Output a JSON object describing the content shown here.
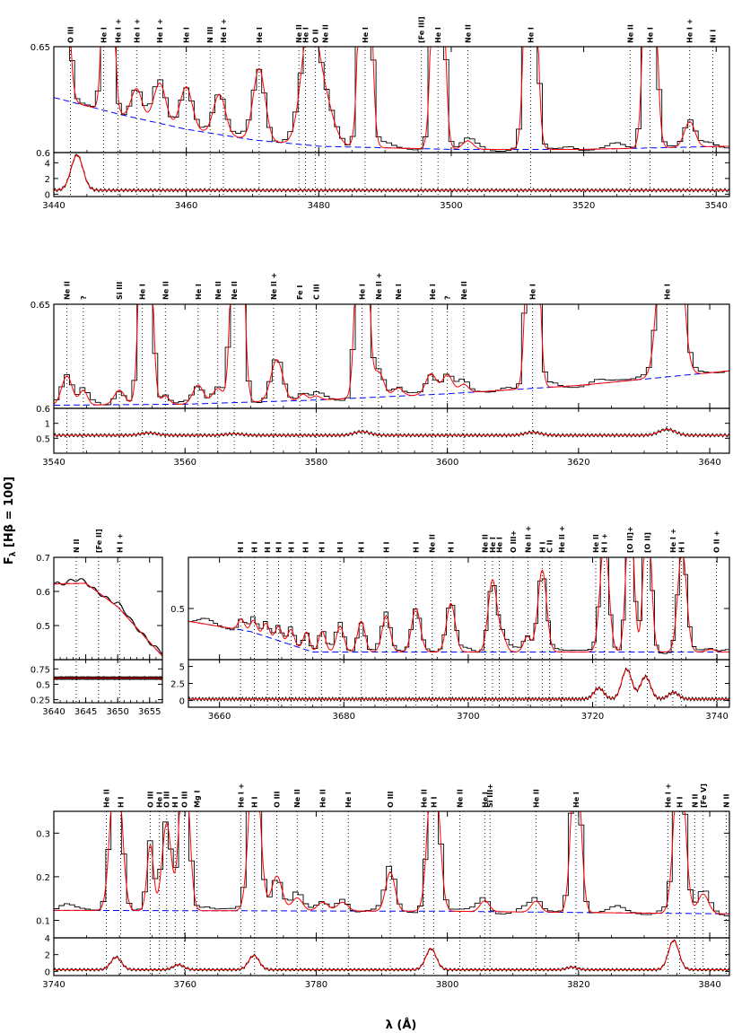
{
  "figure": {
    "xlabel": "λ (Å)",
    "ylabel": "F",
    "ylabel_sub": "λ",
    "ylabel_rest": " [Hβ = 100]"
  },
  "colors": {
    "observed": "#000000",
    "model": "#ff0000",
    "continuum": "#0000ff",
    "markers": "#000000"
  },
  "chart_data": [
    {
      "type": "line",
      "name": "panel-1",
      "xlim": [
        3440,
        3542
      ],
      "ylim": [
        0.6,
        0.65
      ],
      "x_ticks": [
        3440,
        3460,
        3480,
        3500,
        3520,
        3540
      ],
      "y_ticks": [
        {
          "v": 0.6,
          "t": "0.6"
        },
        {
          "v": 0.65,
          "t": "0.65"
        }
      ],
      "resid_ylim": [
        -0.3,
        5.3
      ],
      "resid_ticks": [
        {
          "v": 0,
          "t": "0"
        },
        {
          "v": 2,
          "t": "2"
        },
        {
          "v": 4,
          "t": "4"
        }
      ],
      "resid_base": 0.5,
      "resid_peaks": [
        {
          "x": 3443.5,
          "a": 4.5,
          "w": 0.9
        }
      ],
      "continuum": [
        [
          3440,
          0.626
        ],
        [
          3450,
          0.618
        ],
        [
          3460,
          0.611
        ],
        [
          3470,
          0.606
        ],
        [
          3480,
          0.603
        ],
        [
          3500,
          0.6015
        ],
        [
          3520,
          0.6015
        ],
        [
          3542,
          0.603
        ]
      ],
      "peaks": [
        {
          "x": 3441.0,
          "a": 0.2,
          "w": 0.8
        },
        {
          "x": 3448.2,
          "a": 0.2,
          "w": 0.6
        },
        {
          "x": 3452.5,
          "a": 0.014,
          "w": 0.8
        },
        {
          "x": 3456.0,
          "a": 0.019,
          "w": 0.9
        },
        {
          "x": 3460.0,
          "a": 0.02,
          "w": 0.9
        },
        {
          "x": 3465.0,
          "a": 0.019,
          "w": 0.9
        },
        {
          "x": 3471.0,
          "a": 0.034,
          "w": 0.9
        },
        {
          "x": 3478.5,
          "a": 0.05,
          "w": 1.2
        },
        {
          "x": 3480.5,
          "a": 0.025,
          "w": 1.5
        },
        {
          "x": 3487.0,
          "a": 0.2,
          "w": 0.7
        },
        {
          "x": 3498.0,
          "a": 0.2,
          "w": 0.7
        },
        {
          "x": 3502.5,
          "a": 0.004,
          "w": 0.8
        },
        {
          "x": 3512.0,
          "a": 0.2,
          "w": 0.7
        },
        {
          "x": 3530.0,
          "a": 0.2,
          "w": 0.7
        },
        {
          "x": 3536.0,
          "a": 0.012,
          "w": 0.8
        }
      ],
      "markers": [
        {
          "x": 3442.5,
          "l": "O III"
        },
        {
          "x": 3447.5,
          "l": "He I"
        },
        {
          "x": 3449.7,
          "l": "He I +"
        },
        {
          "x": 3452.5,
          "l": "He I +"
        },
        {
          "x": 3456.0,
          "l": "He I +"
        },
        {
          "x": 3460.0,
          "l": "He I"
        },
        {
          "x": 3463.6,
          "l": "N III"
        },
        {
          "x": 3465.6,
          "l": "He I +"
        },
        {
          "x": 3471.0,
          "l": "He I"
        },
        {
          "x": 3477.0,
          "l": "Ne II"
        },
        {
          "x": 3478.0,
          "l": "He I"
        },
        {
          "x": 3479.5,
          "l": "O II"
        },
        {
          "x": 3481.0,
          "l": "Ne II"
        },
        {
          "x": 3487.0,
          "l": "He I"
        },
        {
          "x": 3495.5,
          "l": "[Fe III]"
        },
        {
          "x": 3498.0,
          "l": "He I"
        },
        {
          "x": 3502.5,
          "l": "Ne II"
        },
        {
          "x": 3512.0,
          "l": "He I"
        },
        {
          "x": 3527.0,
          "l": "Ne II"
        },
        {
          "x": 3530.0,
          "l": "He I"
        },
        {
          "x": 3536.0,
          "l": "He I +"
        },
        {
          "x": 3539.5,
          "l": "Ni I"
        }
      ]
    },
    {
      "type": "line",
      "name": "panel-2",
      "xlim": [
        3540,
        3643
      ],
      "ylim": [
        0.6,
        0.65
      ],
      "x_ticks": [
        3540,
        3560,
        3580,
        3600,
        3620,
        3640
      ],
      "y_ticks": [
        {
          "v": 0.6,
          "t": "0.6"
        },
        {
          "v": 0.65,
          "t": "0.65"
        }
      ],
      "resid_ylim": [
        0.0,
        1.5
      ],
      "resid_ticks": [
        {
          "v": 0.5,
          "t": "0.5"
        },
        {
          "v": 1.0,
          "t": "1"
        }
      ],
      "resid_base": 0.6,
      "resid_peaks": [
        {
          "x": 3554.5,
          "a": 0.08,
          "w": 1.2
        },
        {
          "x": 3567.5,
          "a": 0.05,
          "w": 1.2
        },
        {
          "x": 3587.0,
          "a": 0.12,
          "w": 1.2
        },
        {
          "x": 3613.0,
          "a": 0.1,
          "w": 1.2
        },
        {
          "x": 3633.5,
          "a": 0.2,
          "w": 1.2
        }
      ],
      "continuum": [
        [
          3540,
          0.6015
        ],
        [
          3560,
          0.602
        ],
        [
          3580,
          0.604
        ],
        [
          3600,
          0.607
        ],
        [
          3620,
          0.611
        ],
        [
          3643,
          0.618
        ]
      ],
      "peaks": [
        {
          "x": 3542.0,
          "a": 0.014,
          "w": 0.8
        },
        {
          "x": 3544.5,
          "a": 0.007,
          "w": 0.6
        },
        {
          "x": 3550.0,
          "a": 0.007,
          "w": 0.8
        },
        {
          "x": 3554.0,
          "a": 0.2,
          "w": 0.7
        },
        {
          "x": 3557.0,
          "a": 0.004,
          "w": 0.6
        },
        {
          "x": 3562.0,
          "a": 0.009,
          "w": 0.8
        },
        {
          "x": 3565.0,
          "a": 0.007,
          "w": 0.8
        },
        {
          "x": 3568.0,
          "a": 0.2,
          "w": 0.7
        },
        {
          "x": 3574.0,
          "a": 0.02,
          "w": 0.9
        },
        {
          "x": 3578.0,
          "a": 0.003,
          "w": 0.6
        },
        {
          "x": 3580.0,
          "a": 0.002,
          "w": 0.6
        },
        {
          "x": 3587.0,
          "a": 0.2,
          "w": 0.7
        },
        {
          "x": 3589.5,
          "a": 0.012,
          "w": 0.8
        },
        {
          "x": 3592.5,
          "a": 0.004,
          "w": 0.7
        },
        {
          "x": 3597.5,
          "a": 0.01,
          "w": 0.8
        },
        {
          "x": 3600.0,
          "a": 0.009,
          "w": 0.8
        },
        {
          "x": 3602.5,
          "a": 0.004,
          "w": 0.7
        },
        {
          "x": 3613.0,
          "a": 0.2,
          "w": 0.7
        },
        {
          "x": 3634.0,
          "a": 0.2,
          "w": 1.2
        }
      ],
      "markers": [
        {
          "x": 3542.0,
          "l": "Ne II"
        },
        {
          "x": 3544.5,
          "l": "?"
        },
        {
          "x": 3550.0,
          "l": "Si III"
        },
        {
          "x": 3553.5,
          "l": "He I"
        },
        {
          "x": 3557.0,
          "l": "Ne II"
        },
        {
          "x": 3562.0,
          "l": "He I"
        },
        {
          "x": 3565.0,
          "l": "Ne II"
        },
        {
          "x": 3567.5,
          "l": "Ne II"
        },
        {
          "x": 3573.5,
          "l": "Ne II +"
        },
        {
          "x": 3577.5,
          "l": "Fe I"
        },
        {
          "x": 3580.0,
          "l": "C III"
        },
        {
          "x": 3587.0,
          "l": "He I"
        },
        {
          "x": 3589.5,
          "l": "Ne II +"
        },
        {
          "x": 3592.5,
          "l": "Ne I"
        },
        {
          "x": 3597.7,
          "l": "He I"
        },
        {
          "x": 3600.0,
          "l": "?"
        },
        {
          "x": 3602.5,
          "l": "Ne II"
        },
        {
          "x": 3613.0,
          "l": "He I"
        },
        {
          "x": 3633.5,
          "l": "He I"
        }
      ]
    },
    {
      "type": "line",
      "name": "panel-3a",
      "xlim": [
        3640,
        3657
      ],
      "ylim": [
        0.4,
        0.7
      ],
      "x_ticks": [
        3640,
        3645,
        3650,
        3655
      ],
      "y_ticks": [
        {
          "v": 0.5,
          "t": "0.5"
        },
        {
          "v": 0.6,
          "t": "0.6"
        },
        {
          "v": 0.7,
          "t": "0.7"
        }
      ],
      "resid_ylim": [
        0.2,
        0.9
      ],
      "resid_ticks": [
        {
          "v": 0.25,
          "t": "0.25"
        },
        {
          "v": 0.5,
          "t": "0.5"
        },
        {
          "v": 0.75,
          "t": "0.75"
        }
      ],
      "resid_base": 0.6,
      "resid_peaks": [],
      "continuum": [
        [
          3640,
          0.622
        ],
        [
          3645,
          0.624
        ],
        [
          3650,
          0.555
        ],
        [
          3657,
          0.41
        ]
      ],
      "peaks": [],
      "markers": [
        {
          "x": 3643.5,
          "l": "N II"
        },
        {
          "x": 3647.0,
          "l": "[Fe II]"
        },
        {
          "x": 3650.3,
          "l": "H I +"
        }
      ]
    },
    {
      "type": "line",
      "name": "panel-3b",
      "xlim": [
        3655,
        3742
      ],
      "ylim": [
        0.4,
        0.6
      ],
      "x_ticks": [
        3660,
        3680,
        3700,
        3720,
        3740
      ],
      "y_ticks": [
        {
          "v": 0.5,
          "t": "0.5"
        }
      ],
      "resid_ylim": [
        -1.0,
        6.0
      ],
      "resid_ticks": [
        {
          "v": 0,
          "t": "0"
        },
        {
          "v": 2.5,
          "t": "2.5"
        },
        {
          "v": 5,
          "t": "5"
        }
      ],
      "resid_base": 0.2,
      "resid_peaks": [
        {
          "x": 3721.0,
          "a": 1.6,
          "w": 0.8
        },
        {
          "x": 3725.5,
          "a": 4.4,
          "w": 0.8
        },
        {
          "x": 3728.5,
          "a": 3.3,
          "w": 0.8
        },
        {
          "x": 3733.0,
          "a": 1.0,
          "w": 0.8
        }
      ],
      "continuum": [
        [
          3655,
          0.475
        ],
        [
          3665,
          0.455
        ],
        [
          3675,
          0.415
        ],
        [
          3700,
          0.415
        ],
        [
          3742,
          0.415
        ]
      ],
      "peaks": [
        {
          "x": 3663.5,
          "a": 0.022,
          "w": 0.5
        },
        {
          "x": 3665.5,
          "a": 0.024,
          "w": 0.5
        },
        {
          "x": 3667.5,
          "a": 0.026,
          "w": 0.5
        },
        {
          "x": 3669.5,
          "a": 0.028,
          "w": 0.5
        },
        {
          "x": 3671.5,
          "a": 0.03,
          "w": 0.5
        },
        {
          "x": 3674.0,
          "a": 0.035,
          "w": 0.5
        },
        {
          "x": 3676.5,
          "a": 0.04,
          "w": 0.55
        },
        {
          "x": 3679.4,
          "a": 0.05,
          "w": 0.6
        },
        {
          "x": 3682.8,
          "a": 0.06,
          "w": 0.6
        },
        {
          "x": 3686.8,
          "a": 0.07,
          "w": 0.65
        },
        {
          "x": 3691.6,
          "a": 0.085,
          "w": 0.7
        },
        {
          "x": 3697.2,
          "a": 0.095,
          "w": 0.7
        },
        {
          "x": 3703.9,
          "a": 0.14,
          "w": 0.7
        },
        {
          "x": 3705.5,
          "a": 0.03,
          "w": 0.6
        },
        {
          "x": 3709.5,
          "a": 0.03,
          "w": 0.6
        },
        {
          "x": 3711.9,
          "a": 0.16,
          "w": 0.7
        },
        {
          "x": 3721.9,
          "a": 0.22,
          "w": 0.7
        },
        {
          "x": 3726.0,
          "a": 0.3,
          "w": 0.6
        },
        {
          "x": 3728.8,
          "a": 0.3,
          "w": 0.6
        },
        {
          "x": 3734.4,
          "a": 0.2,
          "w": 0.7
        },
        {
          "x": 3739.0,
          "a": 0.005,
          "w": 0.7
        }
      ],
      "markers": [
        {
          "x": 3663.4,
          "l": "H I"
        },
        {
          "x": 3665.6,
          "l": "H I"
        },
        {
          "x": 3667.7,
          "l": "H I"
        },
        {
          "x": 3669.5,
          "l": "H I"
        },
        {
          "x": 3671.5,
          "l": "H I"
        },
        {
          "x": 3673.8,
          "l": "H I"
        },
        {
          "x": 3676.4,
          "l": "H I"
        },
        {
          "x": 3679.4,
          "l": "H I"
        },
        {
          "x": 3682.8,
          "l": "H I"
        },
        {
          "x": 3686.8,
          "l": "H I"
        },
        {
          "x": 3691.6,
          "l": "H I"
        },
        {
          "x": 3694.2,
          "l": "Ne II"
        },
        {
          "x": 3697.2,
          "l": "H I"
        },
        {
          "x": 3702.7,
          "l": "Ne II"
        },
        {
          "x": 3703.9,
          "l": "He I"
        },
        {
          "x": 3705.0,
          "l": "He I"
        },
        {
          "x": 3707.2,
          "l": "O III+"
        },
        {
          "x": 3709.6,
          "l": "Ne II +"
        },
        {
          "x": 3711.9,
          "l": "H I"
        },
        {
          "x": 3713.1,
          "l": "C II"
        },
        {
          "x": 3715.0,
          "l": "He II +"
        },
        {
          "x": 3720.5,
          "l": "He II"
        },
        {
          "x": 3721.9,
          "l": "H I +"
        },
        {
          "x": 3726.0,
          "l": "[O II]+"
        },
        {
          "x": 3728.8,
          "l": "[O II]"
        },
        {
          "x": 3732.9,
          "l": "He I +"
        },
        {
          "x": 3734.3,
          "l": "H I"
        },
        {
          "x": 3739.9,
          "l": "O II +"
        }
      ]
    },
    {
      "type": "line",
      "name": "panel-4",
      "xlim": [
        3740,
        3843
      ],
      "ylim": [
        0.06,
        0.35
      ],
      "x_ticks": [
        3740,
        3760,
        3780,
        3800,
        3820,
        3840
      ],
      "y_ticks": [
        {
          "v": 0.1,
          "t": "0.1"
        },
        {
          "v": 0.2,
          "t": "0.2"
        },
        {
          "v": 0.3,
          "t": "0.3"
        }
      ],
      "resid_ylim": [
        -0.5,
        4.0
      ],
      "resid_ticks": [
        {
          "v": 0,
          "t": "0"
        },
        {
          "v": 2,
          "t": "2"
        },
        {
          "v": 4,
          "t": "4"
        }
      ],
      "resid_base": 0.2,
      "resid_peaks": [
        {
          "x": 3749.5,
          "a": 1.5,
          "w": 0.8
        },
        {
          "x": 3759.0,
          "a": 0.6,
          "w": 0.8
        },
        {
          "x": 3770.5,
          "a": 1.7,
          "w": 0.8
        },
        {
          "x": 3797.5,
          "a": 2.5,
          "w": 0.8
        },
        {
          "x": 3819.0,
          "a": 0.3,
          "w": 0.8
        },
        {
          "x": 3834.5,
          "a": 3.5,
          "w": 0.8
        }
      ],
      "continuum": [
        [
          3740,
          0.123
        ],
        [
          3800,
          0.121
        ],
        [
          3843,
          0.115
        ]
      ],
      "peaks": [
        {
          "x": 3749.5,
          "a": 0.4,
          "w": 0.8
        },
        {
          "x": 3754.7,
          "a": 0.15,
          "w": 0.5
        },
        {
          "x": 3757.2,
          "a": 0.2,
          "w": 0.7
        },
        {
          "x": 3759.9,
          "a": 0.4,
          "w": 0.7
        },
        {
          "x": 3770.6,
          "a": 0.4,
          "w": 0.8
        },
        {
          "x": 3774.0,
          "a": 0.08,
          "w": 0.8
        },
        {
          "x": 3777.1,
          "a": 0.03,
          "w": 0.8
        },
        {
          "x": 3781.0,
          "a": 0.02,
          "w": 0.8
        },
        {
          "x": 3784.0,
          "a": 0.02,
          "w": 0.8
        },
        {
          "x": 3791.3,
          "a": 0.09,
          "w": 0.7
        },
        {
          "x": 3797.9,
          "a": 0.4,
          "w": 0.8
        },
        {
          "x": 3805.7,
          "a": 0.025,
          "w": 0.7
        },
        {
          "x": 3813.5,
          "a": 0.025,
          "w": 0.7
        },
        {
          "x": 3819.6,
          "a": 0.4,
          "w": 0.7
        },
        {
          "x": 3835.4,
          "a": 0.4,
          "w": 0.8
        },
        {
          "x": 3839.0,
          "a": 0.045,
          "w": 0.8
        }
      ],
      "markers": [
        {
          "x": 3748.0,
          "l": "He II"
        },
        {
          "x": 3750.2,
          "l": "H I"
        },
        {
          "x": 3754.7,
          "l": "O III"
        },
        {
          "x": 3756.1,
          "l": "He I"
        },
        {
          "x": 3757.2,
          "l": "O III"
        },
        {
          "x": 3758.5,
          "l": "H I"
        },
        {
          "x": 3759.9,
          "l": "O III"
        },
        {
          "x": 3761.8,
          "l": "Mg I"
        },
        {
          "x": 3768.5,
          "l": "He I +"
        },
        {
          "x": 3770.6,
          "l": "H I"
        },
        {
          "x": 3774.0,
          "l": "O III"
        },
        {
          "x": 3777.1,
          "l": "Ne II"
        },
        {
          "x": 3781.0,
          "l": "He II"
        },
        {
          "x": 3784.9,
          "l": "He I"
        },
        {
          "x": 3791.3,
          "l": "O III"
        },
        {
          "x": 3796.4,
          "l": "He II"
        },
        {
          "x": 3797.9,
          "l": "H I"
        },
        {
          "x": 3801.9,
          "l": "Ne II"
        },
        {
          "x": 3805.7,
          "l": "He I"
        },
        {
          "x": 3806.5,
          "l": "Si III+"
        },
        {
          "x": 3813.5,
          "l": "He II"
        },
        {
          "x": 3819.6,
          "l": "He I"
        },
        {
          "x": 3833.6,
          "l": "He I +"
        },
        {
          "x": 3835.4,
          "l": "H I"
        },
        {
          "x": 3837.7,
          "l": "N II"
        },
        {
          "x": 3839.0,
          "l": "[Fe V]"
        },
        {
          "x": 3842.5,
          "l": "N II"
        }
      ]
    }
  ]
}
